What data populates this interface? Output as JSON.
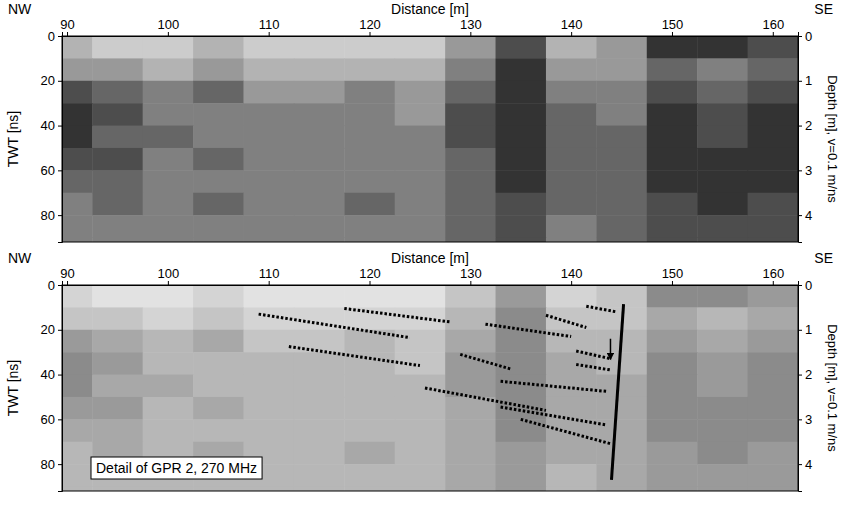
{
  "chart_data": [
    {
      "type": "radargram",
      "color": "#000000",
      "x_label": "Distance [m]",
      "x_end_labels": [
        "NW",
        "SE"
      ],
      "y_label": "TWT [ns]",
      "y2_label": "Depth [m], v=0.1 m/ns",
      "xlim": [
        89.5,
        162.5
      ],
      "xticks": [
        90,
        100,
        110,
        120,
        130,
        140,
        150,
        160
      ],
      "ylim": [
        0,
        92
      ],
      "yticks": [
        0,
        20,
        40,
        60,
        80
      ],
      "y2lim": [
        0,
        4.6
      ],
      "y2ticks": [
        0,
        1,
        2,
        3,
        4
      ],
      "cells": {
        "x": [
          90,
          95,
          100,
          105,
          110,
          115,
          120,
          125,
          130,
          135,
          140,
          145,
          150,
          155,
          160
        ],
        "y": [
          5,
          15,
          25,
          35,
          45,
          55,
          65,
          75,
          85,
          95
        ],
        "values": [
          [
            0.3,
            0.2,
            0.2,
            0.3,
            0.2,
            0.2,
            0.2,
            0.2,
            0.4,
            0.7,
            0.3,
            0.4,
            0.8,
            0.8,
            0.7
          ],
          [
            0.4,
            0.4,
            0.3,
            0.4,
            0.3,
            0.3,
            0.3,
            0.3,
            0.5,
            0.8,
            0.4,
            0.4,
            0.6,
            0.5,
            0.6
          ],
          [
            0.7,
            0.6,
            0.5,
            0.6,
            0.4,
            0.4,
            0.5,
            0.4,
            0.6,
            0.8,
            0.5,
            0.5,
            0.7,
            0.6,
            0.7
          ],
          [
            0.8,
            0.7,
            0.5,
            0.5,
            0.5,
            0.5,
            0.5,
            0.4,
            0.7,
            0.8,
            0.6,
            0.5,
            0.8,
            0.7,
            0.8
          ],
          [
            0.8,
            0.6,
            0.6,
            0.5,
            0.5,
            0.5,
            0.5,
            0.5,
            0.7,
            0.8,
            0.6,
            0.6,
            0.8,
            0.7,
            0.8
          ],
          [
            0.7,
            0.7,
            0.5,
            0.6,
            0.5,
            0.5,
            0.5,
            0.5,
            0.6,
            0.8,
            0.6,
            0.6,
            0.8,
            0.8,
            0.8
          ],
          [
            0.6,
            0.6,
            0.5,
            0.5,
            0.5,
            0.5,
            0.5,
            0.5,
            0.6,
            0.8,
            0.6,
            0.6,
            0.8,
            0.8,
            0.8
          ],
          [
            0.5,
            0.6,
            0.5,
            0.6,
            0.5,
            0.5,
            0.6,
            0.5,
            0.6,
            0.7,
            0.6,
            0.6,
            0.7,
            0.8,
            0.7
          ],
          [
            0.5,
            0.5,
            0.5,
            0.5,
            0.5,
            0.5,
            0.5,
            0.5,
            0.6,
            0.7,
            0.5,
            0.6,
            0.7,
            0.7,
            0.7
          ],
          [
            0.5,
            0.5,
            0.5,
            0.5,
            0.5,
            0.5,
            0.5,
            0.5,
            0.6,
            0.7,
            0.5,
            0.6,
            0.7,
            0.7,
            0.7
          ]
        ]
      }
    },
    {
      "type": "radargram",
      "color": "#6e6e6e",
      "x_label": "Distance [m]",
      "x_end_labels": [
        "NW",
        "SE"
      ],
      "y_label": "TWT [ns]",
      "y2_label": "Depth [m], v=0.1 m/ns",
      "xlim": [
        89.5,
        162.5
      ],
      "xticks": [
        90,
        100,
        110,
        120,
        130,
        140,
        150,
        160
      ],
      "ylim": [
        0,
        92
      ],
      "yticks": [
        0,
        20,
        40,
        60,
        80
      ],
      "y2lim": [
        0,
        4.6
      ],
      "y2ticks": [
        0,
        1,
        2,
        3,
        4
      ],
      "annotations": [
        {
          "text": "Detail of GPR 2, 270 MHz"
        }
      ],
      "cells": {
        "x": [
          90,
          95,
          100,
          105,
          110,
          115,
          120,
          125,
          130,
          135,
          140,
          145,
          150,
          155,
          160
        ],
        "y": [
          5,
          15,
          25,
          35,
          45,
          55,
          65,
          75,
          85,
          95
        ],
        "values": [
          [
            0.3,
            0.2,
            0.2,
            0.3,
            0.2,
            0.2,
            0.2,
            0.2,
            0.4,
            0.7,
            0.3,
            0.4,
            0.8,
            0.8,
            0.7
          ],
          [
            0.4,
            0.4,
            0.3,
            0.4,
            0.3,
            0.3,
            0.3,
            0.3,
            0.5,
            0.8,
            0.4,
            0.4,
            0.6,
            0.5,
            0.6
          ],
          [
            0.7,
            0.6,
            0.5,
            0.6,
            0.4,
            0.4,
            0.5,
            0.4,
            0.6,
            0.8,
            0.5,
            0.5,
            0.7,
            0.6,
            0.7
          ],
          [
            0.8,
            0.7,
            0.5,
            0.5,
            0.5,
            0.5,
            0.5,
            0.4,
            0.7,
            0.8,
            0.6,
            0.5,
            0.8,
            0.7,
            0.8
          ],
          [
            0.8,
            0.6,
            0.6,
            0.5,
            0.5,
            0.5,
            0.5,
            0.5,
            0.7,
            0.8,
            0.6,
            0.6,
            0.8,
            0.7,
            0.8
          ],
          [
            0.7,
            0.7,
            0.5,
            0.6,
            0.5,
            0.5,
            0.5,
            0.5,
            0.6,
            0.8,
            0.6,
            0.6,
            0.8,
            0.8,
            0.8
          ],
          [
            0.6,
            0.6,
            0.5,
            0.5,
            0.5,
            0.5,
            0.5,
            0.5,
            0.6,
            0.8,
            0.6,
            0.6,
            0.8,
            0.8,
            0.8
          ],
          [
            0.5,
            0.6,
            0.5,
            0.6,
            0.5,
            0.5,
            0.6,
            0.5,
            0.6,
            0.7,
            0.6,
            0.6,
            0.7,
            0.8,
            0.7
          ],
          [
            0.5,
            0.5,
            0.5,
            0.5,
            0.5,
            0.5,
            0.5,
            0.5,
            0.6,
            0.7,
            0.5,
            0.6,
            0.7,
            0.7,
            0.7
          ],
          [
            0.5,
            0.5,
            0.5,
            0.5,
            0.5,
            0.5,
            0.5,
            0.5,
            0.6,
            0.7,
            0.5,
            0.6,
            0.7,
            0.7,
            0.7
          ]
        ]
      },
      "series": [
        {
          "type": "line",
          "line_style": "dotted",
          "x": [
            109,
            124
          ],
          "values": [
            13,
            23.5
          ]
        },
        {
          "type": "line",
          "line_style": "dotted",
          "x": [
            117.5,
            128
          ],
          "values": [
            10.5,
            16.5
          ]
        },
        {
          "type": "line",
          "line_style": "dotted",
          "x": [
            112,
            125
          ],
          "values": [
            27.5,
            36
          ]
        },
        {
          "type": "line",
          "line_style": "dotted",
          "x": [
            125.5,
            137.5
          ],
          "values": [
            46,
            56
          ]
        },
        {
          "type": "line",
          "line_style": "dotted",
          "x": [
            129,
            134
          ],
          "values": [
            31,
            37.5
          ]
        },
        {
          "type": "line",
          "line_style": "dotted",
          "x": [
            131.5,
            140
          ],
          "values": [
            17.5,
            23
          ]
        },
        {
          "type": "line",
          "line_style": "dotted",
          "x": [
            137.5,
            141.5
          ],
          "values": [
            13.5,
            19
          ]
        },
        {
          "type": "line",
          "line_style": "dotted",
          "x": [
            133,
            143.5
          ],
          "values": [
            43,
            47.5
          ]
        },
        {
          "type": "line",
          "line_style": "dotted",
          "x": [
            133,
            143.5
          ],
          "values": [
            54.5,
            62.5
          ]
        },
        {
          "type": "line",
          "line_style": "dotted",
          "x": [
            135,
            144
          ],
          "values": [
            60,
            71
          ]
        },
        {
          "type": "line",
          "line_style": "dotted",
          "x": [
            141.5,
            144.5
          ],
          "values": [
            9.5,
            12
          ]
        },
        {
          "type": "line",
          "line_style": "dotted",
          "x": [
            140.5,
            144
          ],
          "values": [
            29.5,
            33
          ]
        },
        {
          "type": "line",
          "line_style": "dotted",
          "x": [
            140.5,
            144
          ],
          "values": [
            35.5,
            38
          ]
        },
        {
          "type": "line",
          "line_style": "solid",
          "x": [
            145.2,
            144
          ],
          "values": [
            8.5,
            87
          ]
        },
        {
          "type": "arrow",
          "line_style": "solid",
          "x": [
            143.9,
            143.9
          ],
          "values": [
            24,
            33
          ]
        }
      ]
    }
  ]
}
